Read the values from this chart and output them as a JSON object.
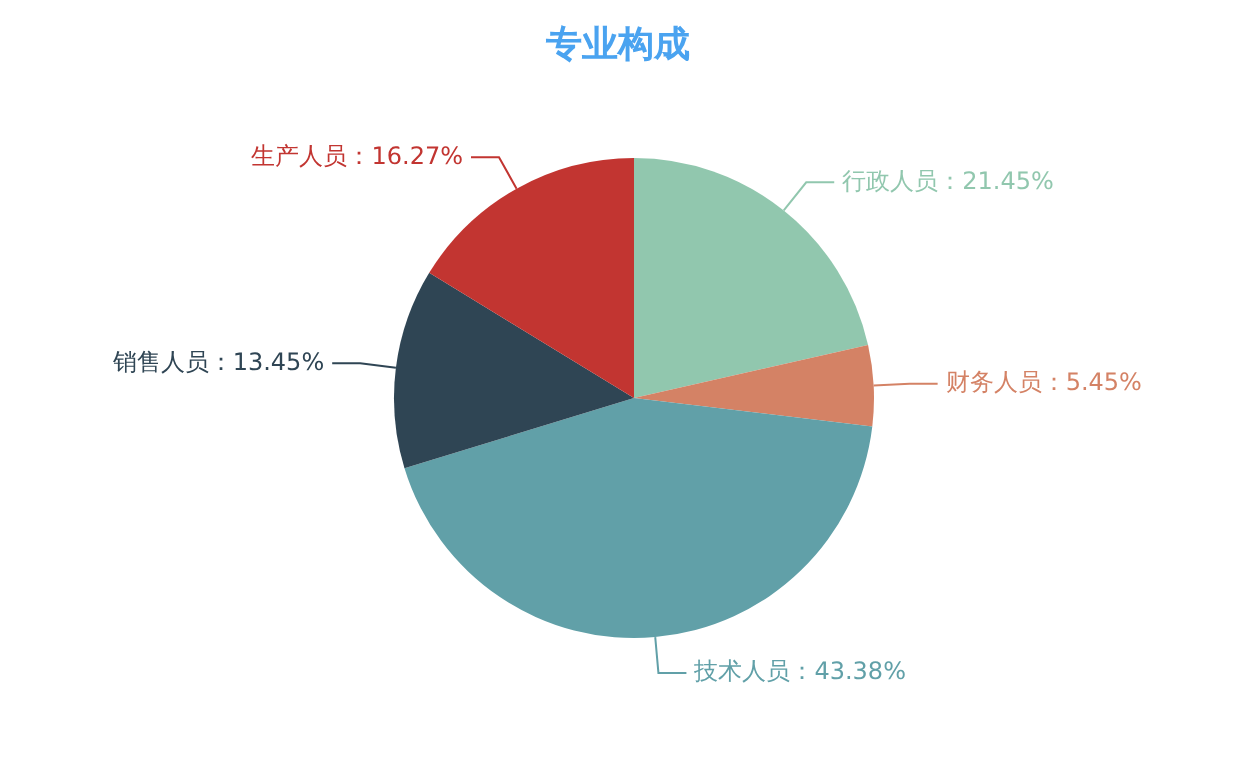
{
  "chart_data": {
    "type": "pie",
    "title": "专业构成",
    "categories": [
      "行政人员",
      "财务人员",
      "技术人员",
      "销售人员",
      "生产人员"
    ],
    "values": [
      21.45,
      5.45,
      43.38,
      13.45,
      16.27
    ],
    "colors": [
      "#91c7ae",
      "#d48265",
      "#61a0a8",
      "#2f4554",
      "#c23531"
    ],
    "value_labels": [
      "：21.45%",
      "：5.45%",
      "：43.38%",
      "：13.45%",
      "：16.27%"
    ],
    "legend": false
  }
}
